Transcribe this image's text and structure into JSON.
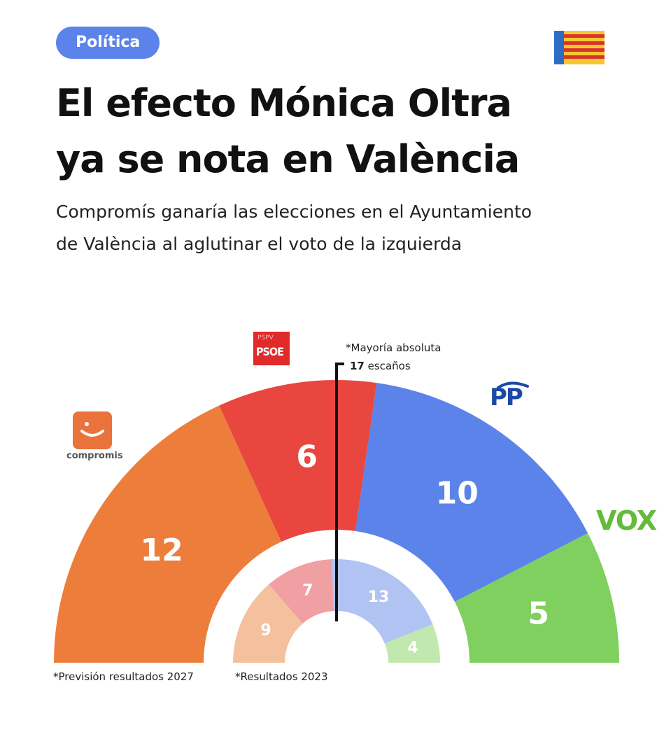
{
  "header": {
    "tag": "Política",
    "title_line1": "El efecto Mónica Oltra",
    "title_line2": "ya se nota en València",
    "subtitle_line1": "Compromís ganaría las elecciones en el Ayuntamiento",
    "subtitle_line2": "de València al aglutinar el voto de la izquierda"
  },
  "logos": {
    "psoe_small": "PSPV",
    "psoe": "PSOE",
    "pp": "PP",
    "vox": "VOX",
    "compromis": "compromis"
  },
  "majority": {
    "label": "*Mayoría absoluta",
    "seats_number": "17",
    "seats_text": "escaños"
  },
  "notes": {
    "outer": "*Previsión resultados 2027",
    "inner": "*Resultados 2023"
  },
  "chart_data": [
    {
      "type": "pie",
      "subtype": "parliament-semicircle",
      "title": "*Previsión resultados 2027",
      "categories": [
        "Compromís",
        "PSOE",
        "PP",
        "VOX"
      ],
      "values": [
        12,
        6,
        10,
        5
      ],
      "colors": [
        "#ed7d3a",
        "#e8463f",
        "#5b83ea",
        "#7fd05e"
      ],
      "total_seats": 33,
      "majority": 17
    },
    {
      "type": "pie",
      "subtype": "parliament-semicircle",
      "title": "*Resultados 2023",
      "categories": [
        "Compromís",
        "PSOE",
        "PP",
        "VOX"
      ],
      "values": [
        9,
        7,
        13,
        4
      ],
      "colors": [
        "#f5c09e",
        "#f0a0a3",
        "#b1c3f3",
        "#c1e8ae"
      ],
      "total_seats": 33,
      "majority": 17
    }
  ]
}
